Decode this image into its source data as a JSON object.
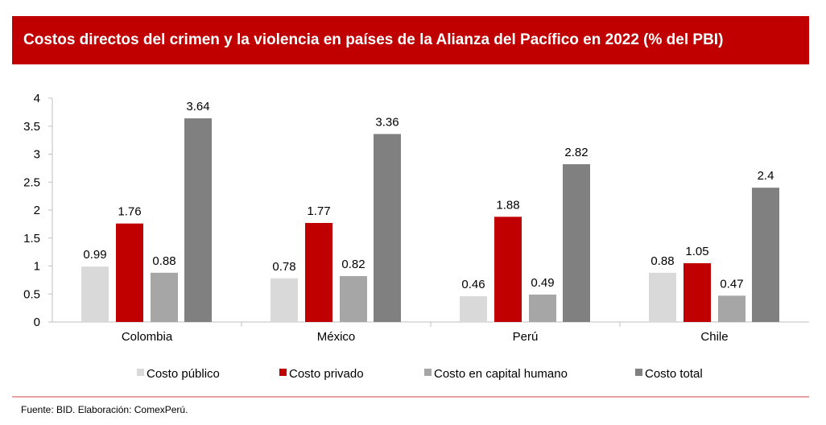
{
  "chart_data": {
    "type": "bar",
    "title": "Costos directos del crimen y la violencia en países de la Alianza del Pacífico en 2022 (% del PBI)",
    "categories": [
      "Colombia",
      "México",
      "Perú",
      "Chile"
    ],
    "series": [
      {
        "name": "Costo público",
        "color": "#D9D9D9",
        "values": [
          0.99,
          0.78,
          0.46,
          0.88
        ]
      },
      {
        "name": "Costo privado",
        "color": "#C00000",
        "values": [
          1.76,
          1.77,
          1.88,
          1.05
        ]
      },
      {
        "name": "Costo en capital humano",
        "color": "#A6A6A6",
        "values": [
          0.88,
          0.82,
          0.49,
          0.47
        ]
      },
      {
        "name": "Costo total",
        "color": "#808080",
        "values": [
          3.64,
          3.36,
          2.82,
          2.4
        ]
      }
    ],
    "yticks": [
      "0",
      "0.5",
      "1",
      "1.5",
      "2",
      "2.5",
      "3",
      "3.5",
      "4"
    ],
    "ylim": [
      0,
      4
    ],
    "xlabel": "",
    "ylabel": "",
    "legend_position": "bottom",
    "grid": false
  },
  "source": "Fuente: BID. Elaboración: ComexPerú."
}
